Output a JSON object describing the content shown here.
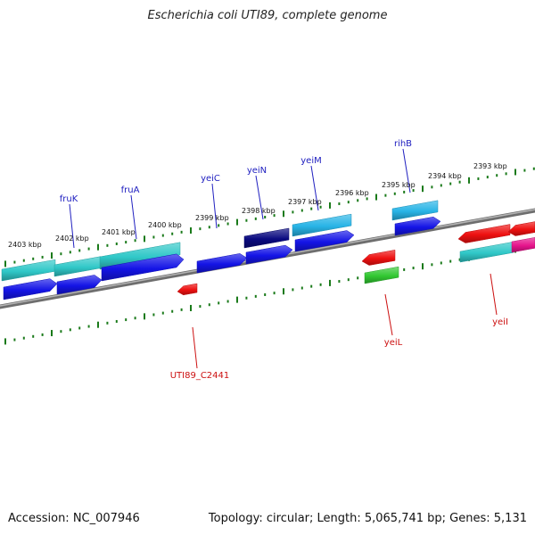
{
  "title": "Escherichia coli UTI89, complete genome",
  "footer": {
    "accession": "Accession: NC_007946",
    "stats": "Topology: circular; Length: 5,065,741 bp; Genes: 5,131"
  },
  "colors": {
    "backbone": "#8c8c8c",
    "ticks": "#1a7a1a",
    "label_plus": "#2020c0",
    "label_minus": "#cc1010",
    "cyan": "#30c8c8",
    "blue": "#1414e6",
    "navy": "#0a0a80",
    "sky": "#28b4e6",
    "red": "#ee1010",
    "green": "#32c832",
    "magenta": "#e6148c"
  },
  "scale": {
    "labels": [
      "2403 kbp",
      "2402 kbp",
      "2401 kbp",
      "2400 kbp",
      "2399 kbp",
      "2398 kbp",
      "2397 kbp",
      "2396 kbp",
      "2395 kbp",
      "2394 kbp",
      "2393 kbp"
    ]
  },
  "gene_labels": [
    {
      "name": "fruK",
      "strand": "plus"
    },
    {
      "name": "fruA",
      "strand": "plus"
    },
    {
      "name": "yeiC",
      "strand": "plus"
    },
    {
      "name": "yeiN",
      "strand": "plus"
    },
    {
      "name": "yeiM",
      "strand": "plus"
    },
    {
      "name": "rihB",
      "strand": "plus"
    },
    {
      "name": "UTI89_C2441",
      "strand": "minus"
    },
    {
      "name": "yeiL",
      "strand": "minus"
    },
    {
      "name": "yeiI",
      "strand": "minus"
    }
  ]
}
